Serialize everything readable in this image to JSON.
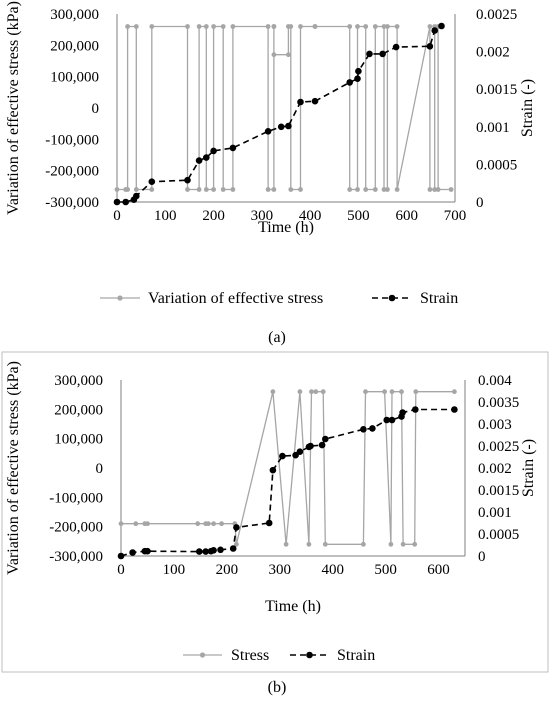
{
  "figure": {
    "panel_a_label": "(a)",
    "panel_b_label": "(b)"
  },
  "chart_data": [
    {
      "type": "line",
      "panel": "(a)",
      "title": "",
      "xlabel": "Time (h)",
      "ylabel_left": "Variation of effective stress (kPa)",
      "ylabel_right": "Strain (-)",
      "xlim": [
        0,
        700
      ],
      "ylim_left": [
        -300000,
        300000
      ],
      "ylim_right": [
        0,
        0.0025
      ],
      "x_ticks": [
        "0",
        "100",
        "200",
        "300",
        "400",
        "500",
        "600",
        "700"
      ],
      "y_left_ticks": [
        "300,000",
        "200,000",
        "100,000",
        "0",
        "-100,000",
        "-200,000",
        "-300,000"
      ],
      "y_right_ticks": [
        "0.0025",
        "0.002",
        "0.0015",
        "0.001",
        "0.0005",
        "0"
      ],
      "grid": false,
      "legend_position": "bottom",
      "series": [
        {
          "name": "Variation of effective stress",
          "axis": "left",
          "color": "#a6a6a6",
          "marker": "circle-small",
          "dash": "solid",
          "x": [
            0,
            18,
            22,
            22,
            40,
            40,
            72,
            72,
            146,
            146,
            170,
            170,
            185,
            185,
            200,
            200,
            220,
            220,
            240,
            240,
            313,
            313,
            325,
            325,
            325,
            325,
            355,
            355,
            360,
            360,
            380,
            380,
            410,
            410,
            482,
            482,
            498,
            498,
            515,
            515,
            535,
            535,
            553,
            553,
            560,
            560,
            580,
            580,
            648,
            648,
            658,
            658,
            665,
            665,
            692
          ],
          "y": [
            -260000,
            -260000,
            -260000,
            260000,
            260000,
            -260000,
            -260000,
            260000,
            260000,
            -260000,
            -260000,
            260000,
            260000,
            -260000,
            -260000,
            260000,
            260000,
            -260000,
            -260000,
            260000,
            260000,
            -260000,
            -260000,
            260000,
            260000,
            170000,
            170000,
            260000,
            260000,
            -260000,
            -260000,
            260000,
            260000,
            260000,
            260000,
            -260000,
            -260000,
            260000,
            260000,
            -260000,
            -260000,
            260000,
            260000,
            -260000,
            -260000,
            260000,
            260000,
            -260000,
            260000,
            -260000,
            -260000,
            260000,
            260000,
            -260000,
            -260000
          ]
        },
        {
          "name": "Strain",
          "axis": "right",
          "color": "#000000",
          "marker": "circle",
          "dash": "dashed",
          "x": [
            0,
            18,
            35,
            40,
            72,
            146,
            170,
            185,
            200,
            240,
            313,
            340,
            355,
            380,
            410,
            482,
            498,
            500,
            523,
            550,
            578,
            648,
            658,
            672
          ],
          "y": [
            0.0,
            0.0,
            3e-05,
            8e-05,
            0.00027,
            0.00029,
            0.00055,
            0.00059,
            0.00068,
            0.00072,
            0.00094,
            0.001,
            0.00101,
            0.00133,
            0.00134,
            0.00159,
            0.00164,
            0.00174,
            0.00197,
            0.00197,
            0.00206,
            0.00207,
            0.00228,
            0.00234
          ]
        }
      ]
    },
    {
      "type": "line",
      "panel": "(b)",
      "title": "",
      "xlabel": "Time (h)",
      "ylabel_left": "Variation of effective stress (kPa)",
      "ylabel_right": "Strain (-)",
      "xlim": [
        0,
        650
      ],
      "ylim_left": [
        -300000,
        300000
      ],
      "ylim_right": [
        0,
        0.004
      ],
      "x_ticks": [
        "0",
        "100",
        "200",
        "300",
        "400",
        "500",
        "600"
      ],
      "y_left_ticks": [
        "300,000",
        "200,000",
        "100,000",
        "0",
        "-100,000",
        "-200,000",
        "-300,000"
      ],
      "y_right_ticks": [
        "0.004",
        "0.0035",
        "0.003",
        "0.0025",
        "0.002",
        "0.0015",
        "0.001",
        "0.0005",
        "0"
      ],
      "grid": false,
      "legend_position": "bottom",
      "series": [
        {
          "name": "Stress",
          "axis": "left",
          "color": "#a6a6a6",
          "marker": "circle-small",
          "dash": "solid",
          "x": [
            0,
            28,
            45,
            50,
            145,
            160,
            165,
            175,
            190,
            215,
            218,
            287,
            312,
            338,
            355,
            360,
            368,
            382,
            386,
            458,
            462,
            498,
            510,
            512,
            530,
            533,
            555,
            557,
            630
          ],
          "y": [
            -190000,
            -190000,
            -190000,
            -190000,
            -190000,
            -190000,
            -190000,
            -190000,
            -190000,
            -190000,
            -260000,
            260000,
            -260000,
            260000,
            -260000,
            260000,
            260000,
            260000,
            -260000,
            -260000,
            260000,
            260000,
            -260000,
            260000,
            260000,
            -260000,
            -260000,
            260000,
            260000
          ]
        },
        {
          "name": "Strain",
          "axis": "right",
          "color": "#000000",
          "marker": "circle",
          "dash": "dashed",
          "x": [
            0,
            22,
            45,
            50,
            148,
            160,
            170,
            175,
            188,
            212,
            218,
            280,
            287,
            305,
            330,
            338,
            355,
            358,
            380,
            386,
            458,
            475,
            502,
            512,
            530,
            532,
            556,
            630
          ],
          "y": [
            0.0,
            8e-05,
            0.00011,
            0.00011,
            0.0001,
            0.0001,
            0.00011,
            0.00013,
            0.00014,
            0.00017,
            0.00065,
            0.00075,
            0.00195,
            0.00227,
            0.00229,
            0.00237,
            0.00248,
            0.0025,
            0.00252,
            0.00266,
            0.00288,
            0.0029,
            0.00309,
            0.00309,
            0.00317,
            0.00326,
            0.00333,
            0.00333
          ]
        }
      ]
    }
  ]
}
